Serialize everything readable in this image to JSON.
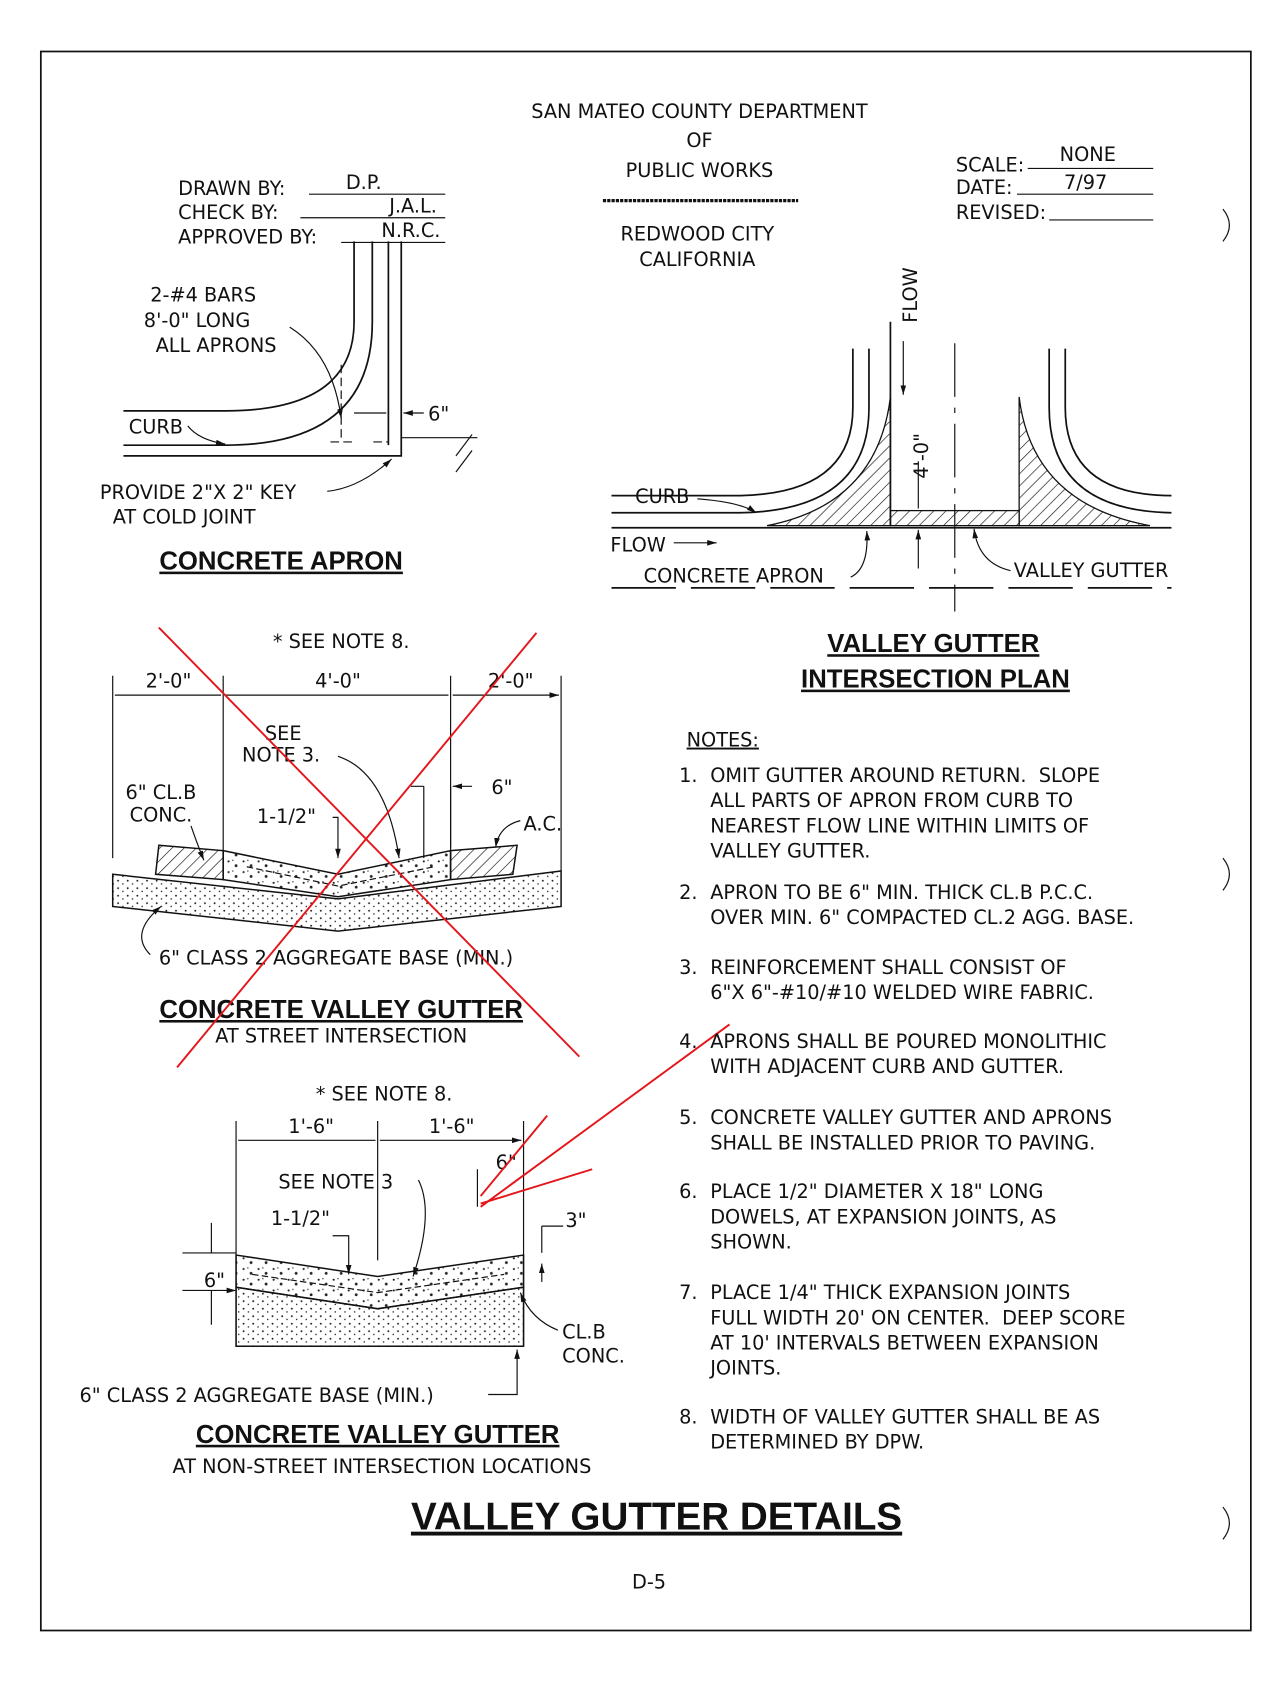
{
  "header": {
    "agency": [
      "SAN MATEO COUNTY DEPARTMENT",
      "OF",
      "PUBLIC WORKS"
    ],
    "location": [
      "REDWOOD CITY",
      "CALIFORNIA"
    ],
    "drawn_by": {
      "label": "DRAWN BY:",
      "value": "D.P."
    },
    "check_by": {
      "label": "CHECK BY:",
      "value": "J.A.L."
    },
    "approved_by": {
      "label": "APPROVED BY:",
      "value": "N.R.C."
    },
    "scale": {
      "label": "SCALE:",
      "value": "NONE"
    },
    "date": {
      "label": "DATE:",
      "value": "7/97"
    },
    "revised": {
      "label": "REVISED:"
    }
  },
  "concrete_apron": {
    "title": "CONCRETE APRON",
    "bars": [
      "2-#4 BARS",
      "8'-0\" LONG",
      "ALL APRONS"
    ],
    "curb": "CURB",
    "dim": "6\"",
    "key": [
      "PROVIDE 2\"X 2\" KEY",
      "AT COLD JOINT"
    ]
  },
  "plan": {
    "title": [
      "VALLEY GUTTER",
      "INTERSECTION PLAN"
    ],
    "flow_top": "FLOW",
    "dim": "4'-0\"",
    "curb": "CURB",
    "flow_left": "FLOW",
    "apron": "CONCRETE APRON",
    "gutter": "VALLEY GUTTER"
  },
  "street_section": {
    "title": "CONCRETE VALLEY GUTTER",
    "subtitle": "AT STREET INTERSECTION",
    "see_note": "* SEE NOTE 8.",
    "dims": [
      "2'-0\"",
      "4'-0\"",
      "2'-0\""
    ],
    "see_note_3": [
      "SEE",
      "NOTE 3."
    ],
    "conc": [
      "6\" CL.B",
      "CONC."
    ],
    "thickness": "1-1/2\"",
    "six": "6\"",
    "ac": "A.C.",
    "base": "6\" CLASS 2 AGGREGATE BASE (MIN.)"
  },
  "nonstreet_section": {
    "title": "CONCRETE VALLEY GUTTER",
    "subtitle": "AT NON-STREET INTERSECTION LOCATIONS",
    "see_note": "* SEE NOTE 8.",
    "dims": [
      "1'-6\"",
      "1'-6\""
    ],
    "six_top": "6\"",
    "see_note_3": "SEE NOTE 3",
    "thickness": "1-1/2\"",
    "three": "3\"",
    "six_left": "6\"",
    "conc": [
      "CL.B",
      "CONC."
    ],
    "base": "6\" CLASS 2 AGGREGATE BASE (MIN.)"
  },
  "notes": {
    "heading": "NOTES:",
    "items": [
      {
        "number": "1.",
        "lines": [
          "OMIT GUTTER AROUND RETURN.  SLOPE",
          "ALL PARTS OF APRON FROM CURB TO",
          "NEAREST FLOW LINE WITHIN LIMITS OF",
          "VALLEY GUTTER."
        ]
      },
      {
        "number": "2.",
        "lines": [
          "APRON TO BE 6\" MIN. THICK CL.B P.C.C.",
          "OVER MIN. 6\" COMPACTED CL.2 AGG. BASE."
        ]
      },
      {
        "number": "3.",
        "lines": [
          "REINFORCEMENT SHALL CONSIST OF",
          "6\"X 6\"-#10/#10 WELDED WIRE FABRIC."
        ]
      },
      {
        "number": "4.",
        "lines": [
          "APRONS SHALL BE POURED MONOLITHIC",
          "WITH ADJACENT CURB AND GUTTER."
        ]
      },
      {
        "number": "5.",
        "lines": [
          "CONCRETE VALLEY GUTTER AND APRONS",
          "SHALL BE INSTALLED PRIOR TO PAVING."
        ]
      },
      {
        "number": "6.",
        "lines": [
          "PLACE 1/2\" DIAMETER X 18\" LONG",
          "DOWELS, AT EXPANSION JOINTS, AS",
          "SHOWN."
        ]
      },
      {
        "number": "7.",
        "lines": [
          "PLACE 1/4\" THICK EXPANSION JOINTS",
          "FULL WIDTH 20' ON CENTER.  DEEP SCORE",
          "AT 10' INTERVALS BETWEEN EXPANSION",
          "JOINTS."
        ]
      },
      {
        "number": "8.",
        "lines": [
          "WIDTH OF VALLEY GUTTER SHALL BE AS",
          "DETERMINED BY DPW."
        ]
      }
    ]
  },
  "footer": {
    "title": "VALLEY GUTTER DETAILS",
    "sheet": "D-5"
  }
}
